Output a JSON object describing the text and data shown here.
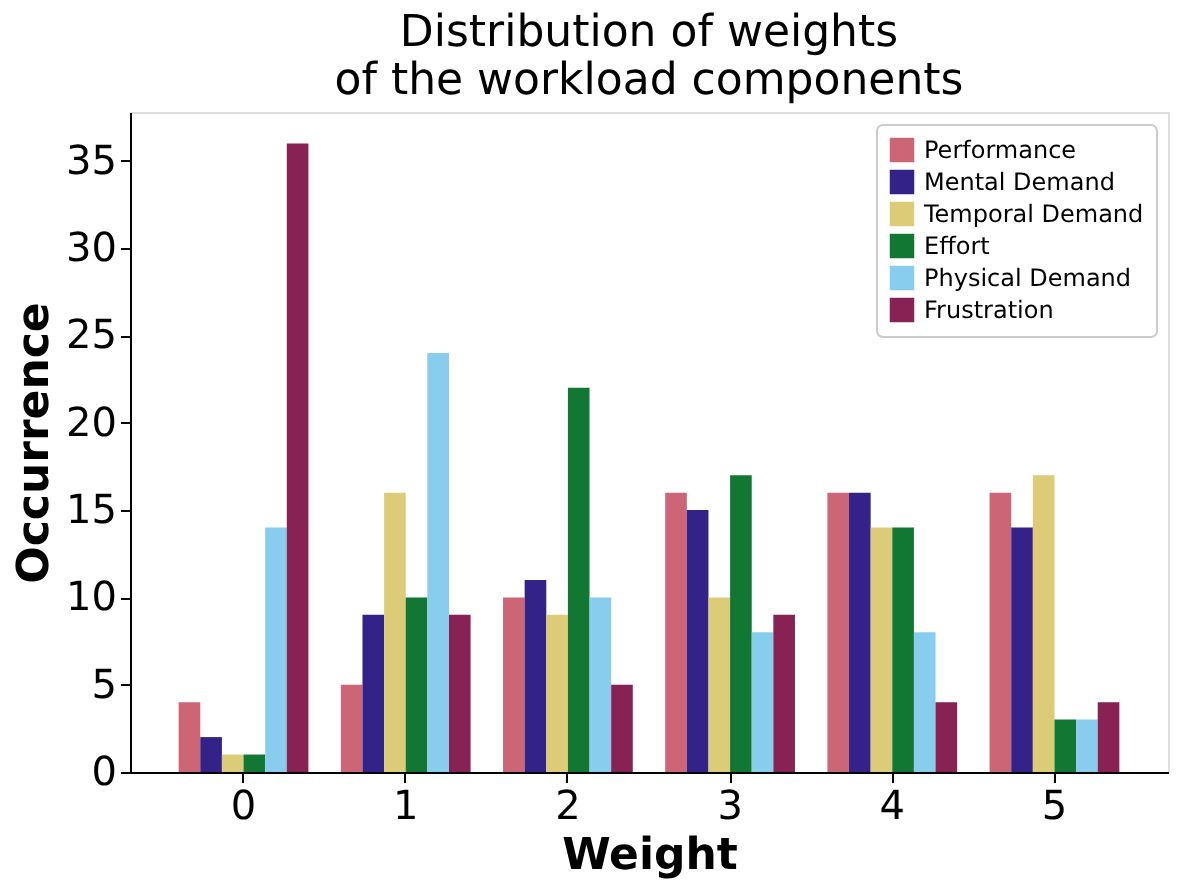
{
  "chart_data": {
    "type": "bar",
    "title": [
      "Distribution of weights",
      "of the workload components"
    ],
    "xlabel": "Weight",
    "ylabel": "Occurrence",
    "categories": [
      "0",
      "1",
      "2",
      "3",
      "4",
      "5"
    ],
    "series": [
      {
        "name": "Performance",
        "color": "#cc6677",
        "values": [
          4,
          5,
          10,
          16,
          16,
          16
        ]
      },
      {
        "name": "Mental Demand",
        "color": "#332288",
        "values": [
          2,
          9,
          11,
          15,
          16,
          14
        ]
      },
      {
        "name": "Temporal Demand",
        "color": "#ddcc77",
        "values": [
          1,
          16,
          9,
          10,
          14,
          17
        ]
      },
      {
        "name": "Effort",
        "color": "#117733",
        "values": [
          1,
          10,
          22,
          17,
          14,
          3
        ]
      },
      {
        "name": "Physical Demand",
        "color": "#88ccee",
        "values": [
          14,
          24,
          10,
          8,
          8,
          3
        ]
      },
      {
        "name": "Frustration",
        "color": "#882255",
        "values": [
          36,
          9,
          5,
          9,
          4,
          4
        ]
      }
    ],
    "ylim": [
      0,
      37.8
    ],
    "yticks": [
      0,
      5,
      10,
      15,
      20,
      25,
      30,
      35
    ],
    "grid": false,
    "legend": "top right"
  }
}
